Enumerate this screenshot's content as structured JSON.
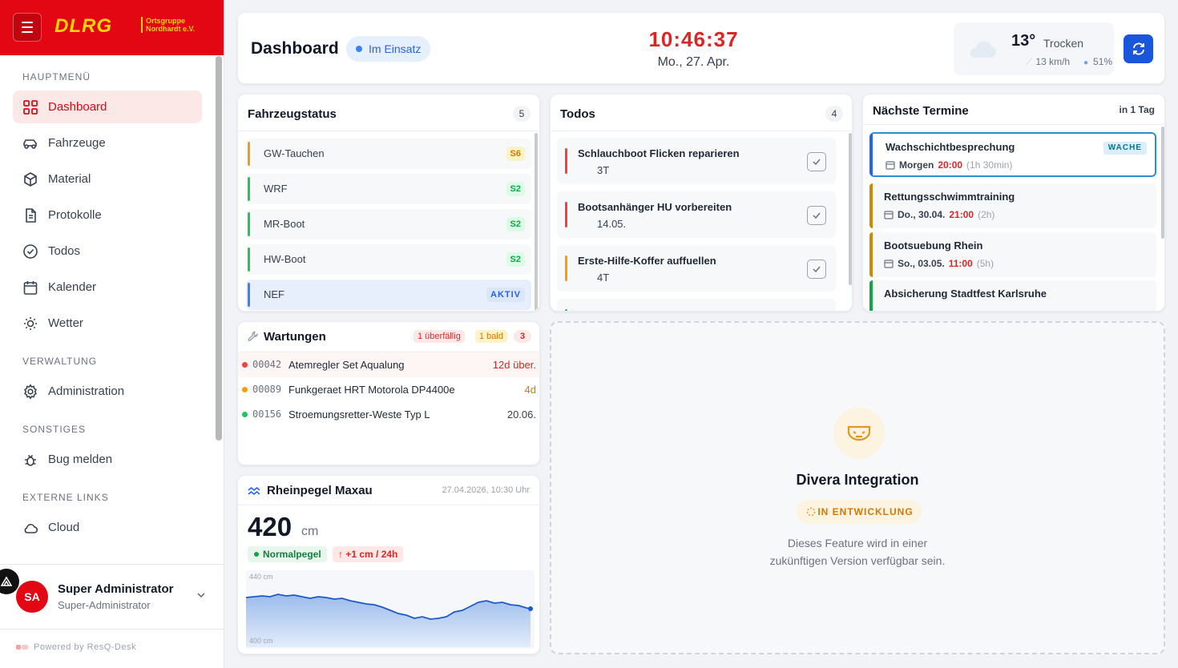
{
  "brand": {
    "logo": "DLRG",
    "sub_line1": "Ortsgruppe",
    "sub_line2": "Nordhardt e.V.",
    "color": "#e30613"
  },
  "sidebar": {
    "sections": {
      "main": "HAUPTMENÜ",
      "admin": "VERWALTUNG",
      "misc": "SONSTIGES",
      "links": "EXTERNE LINKS"
    },
    "items": [
      {
        "label": "Dashboard",
        "icon": "grid-icon",
        "active": true
      },
      {
        "label": "Fahrzeuge",
        "icon": "car-icon"
      },
      {
        "label": "Material",
        "icon": "box-icon"
      },
      {
        "label": "Protokolle",
        "icon": "document-icon"
      },
      {
        "label": "Todos",
        "icon": "check-circle-icon"
      },
      {
        "label": "Kalender",
        "icon": "calendar-icon"
      },
      {
        "label": "Wetter",
        "icon": "sun-icon"
      },
      {
        "label": "Administration",
        "icon": "gear-icon"
      },
      {
        "label": "Bug melden",
        "icon": "bug-icon"
      },
      {
        "label": "Cloud",
        "icon": "cloud-icon"
      }
    ],
    "user": {
      "initials": "SA",
      "name": "Super Administrator",
      "role": "Super-Administrator"
    },
    "powered": "Powered by ResQ-Desk"
  },
  "header": {
    "title": "Dashboard",
    "status": "Im Einsatz",
    "clock": "10:46:37",
    "date": "Mo., 27. Apr.",
    "weather": {
      "temp": "13°",
      "condition": "Trocken",
      "wind": "13 km/h",
      "humidity": "51%"
    }
  },
  "vehicles": {
    "title": "Fahrzeugstatus",
    "count": "5",
    "items": [
      {
        "name": "GW-Tauchen",
        "code": "S6",
        "color": "#f59e0b"
      },
      {
        "name": "WRF",
        "code": "S2",
        "color": "#22c55e"
      },
      {
        "name": "MR-Boot",
        "code": "S2",
        "color": "#22c55e"
      },
      {
        "name": "HW-Boot",
        "code": "S2",
        "color": "#22c55e"
      },
      {
        "name": "NEF",
        "code": "AKTIV",
        "color": "#3b82f6"
      }
    ]
  },
  "todos": {
    "title": "Todos",
    "count": "4",
    "items": [
      {
        "title": "Schlauchboot Flicken reparieren",
        "due": "3T",
        "color": "#ef4444"
      },
      {
        "title": "Bootsanhänger HU vorbereiten",
        "due": "14.05.",
        "color": "#ef4444"
      },
      {
        "title": "Erste-Hilfe-Koffer auffuellen",
        "due": "4T",
        "color": "#f59e0b"
      }
    ]
  },
  "events": {
    "title": "Nächste Termine",
    "next": "in 1 Tag",
    "items": [
      {
        "title": "Wachschichtbesprechung",
        "day": "Morgen",
        "time": "20:00",
        "dur": "(1h 30min)",
        "tag": "WACHE",
        "color": "#2563eb"
      },
      {
        "title": "Rettungsschwimmtraining",
        "day": "Do., 30.04.",
        "time": "21:00",
        "dur": "(2h)",
        "color": "#ca8a04"
      },
      {
        "title": "Bootsuebung Rhein",
        "day": "So., 03.05.",
        "time": "11:00",
        "dur": "(5h)",
        "color": "#ca8a04"
      },
      {
        "title": "Absicherung Stadtfest Karlsruhe",
        "day": "",
        "time": "",
        "dur": "",
        "color": "#16a34a"
      }
    ]
  },
  "maintenance": {
    "title": "Wartungen",
    "overdue": "1 überfällig",
    "soon": "1 bald",
    "count": "3",
    "items": [
      {
        "num": "00042",
        "name": "Atemregler Set Aqualung",
        "due": "12d über.",
        "status": "overdue"
      },
      {
        "num": "00089",
        "name": "Funkgeraet HRT Motorola DP4400e",
        "due": "4d",
        "status": "soon"
      },
      {
        "num": "00156",
        "name": "Stroemungsretter-Weste Typ L",
        "due": "20.06.",
        "status": "ok"
      }
    ]
  },
  "pegel": {
    "title": "Rheinpegel Maxau",
    "timestamp": "27.04.2026, 10:30 Uhr",
    "value": "420",
    "unit": "cm",
    "status": "Normalpegel",
    "trend": "↑ +1 cm / 24h",
    "axis_top": "440 cm",
    "axis_bottom": "400 cm"
  },
  "divera": {
    "title": "Divera Integration",
    "badge": "IN ENTWICKLUNG",
    "text_line1": "Dieses Feature wird in einer",
    "text_line2": "zukünftigen Version verfügbar sein."
  }
}
